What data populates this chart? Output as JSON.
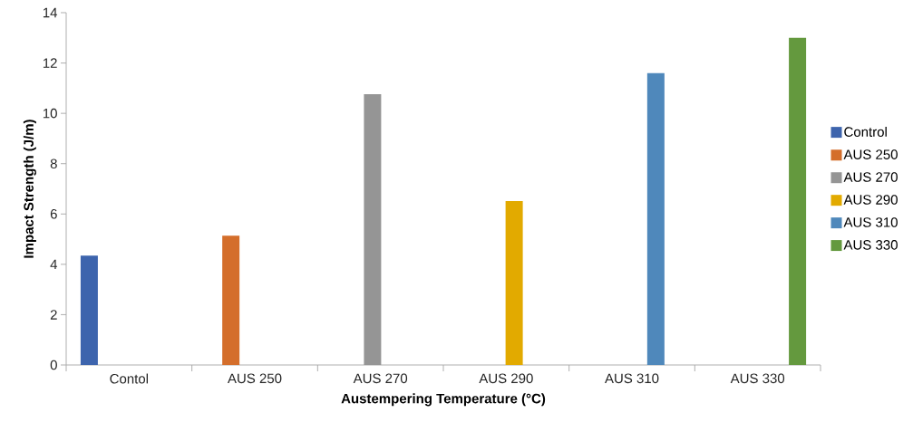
{
  "chart_data": {
    "type": "bar",
    "xlabel": "Austempering Temperature (°C)",
    "ylabel": "Impact Strength (J/m)",
    "categories": [
      "Contol",
      "AUS 250",
      "AUS 270",
      "AUS 290",
      "AUS 310",
      "AUS 330"
    ],
    "series": [
      {
        "name": "Control",
        "color": "#3d64ad",
        "values": [
          4.35,
          null,
          null,
          null,
          null,
          null
        ]
      },
      {
        "name": "AUS 250",
        "color": "#d46e2b",
        "values": [
          null,
          5.14,
          null,
          null,
          null,
          null
        ]
      },
      {
        "name": "AUS 270",
        "color": "#959595",
        "values": [
          null,
          null,
          10.76,
          null,
          null,
          null
        ]
      },
      {
        "name": "AUS 290",
        "color": "#e2aa00",
        "values": [
          null,
          null,
          null,
          6.51,
          null,
          null
        ]
      },
      {
        "name": "AUS 310",
        "color": "#4f88bb",
        "values": [
          null,
          null,
          null,
          null,
          11.6,
          null
        ]
      },
      {
        "name": "AUS 330",
        "color": "#64993e",
        "values": [
          null,
          null,
          null,
          null,
          null,
          13.0
        ]
      }
    ],
    "ylim": [
      0,
      14
    ],
    "yticks": [
      0,
      2,
      4,
      6,
      8,
      10,
      12,
      14
    ],
    "legend": "right",
    "grid": false
  }
}
